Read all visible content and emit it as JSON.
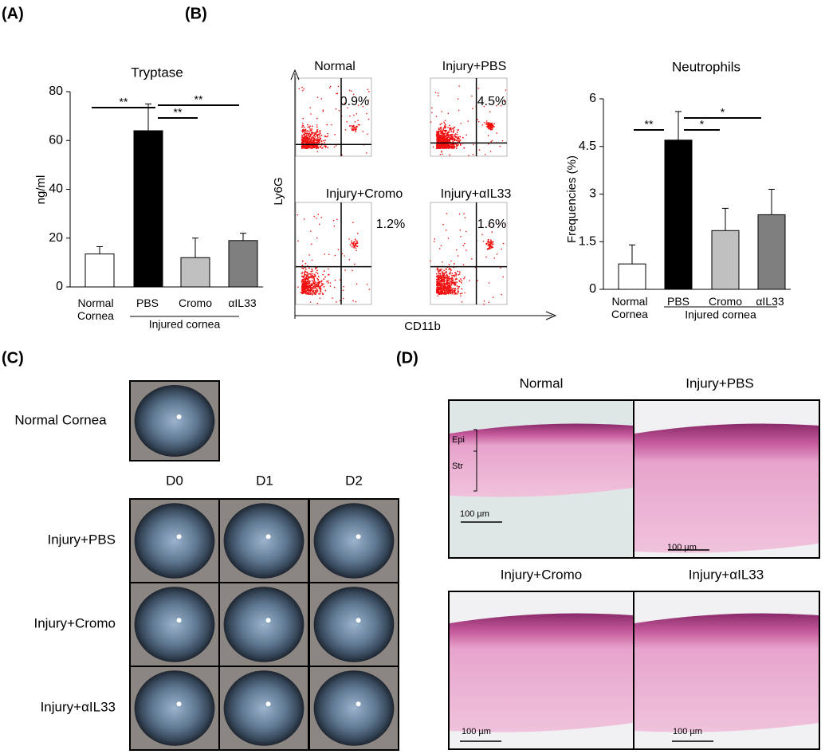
{
  "panel_labels": [
    "(A)",
    "(B)",
    "(C)",
    "(D)"
  ],
  "chart_data": [
    {
      "type": "bar",
      "title": "Tryptase",
      "ylabel": "ng/ml",
      "categories": [
        "Normal Cornea",
        "PBS",
        "Cromo",
        "αIL33"
      ],
      "values": [
        13.5,
        64,
        12,
        19
      ],
      "errors": [
        3,
        11,
        8,
        3
      ],
      "colors": [
        "#ffffff",
        "#000000",
        "#c0c0c0",
        "#7f7f7f"
      ],
      "group_label": "Injured cornea",
      "annotations": [
        "**",
        "**",
        "**"
      ],
      "ylim": [
        0,
        80
      ],
      "yticks": [
        0,
        20,
        40,
        60,
        80
      ]
    },
    {
      "type": "bar",
      "title": "Neutrophils",
      "ylabel": "Frequencies (%)",
      "categories": [
        "Normal Cornea",
        "PBS",
        "Cromo",
        "αIL33"
      ],
      "values": [
        0.8,
        4.7,
        1.85,
        2.35
      ],
      "errors": [
        0.6,
        0.9,
        0.7,
        0.8
      ],
      "colors": [
        "#ffffff",
        "#000000",
        "#c0c0c0",
        "#7f7f7f"
      ],
      "group_label": "Injured cornea",
      "annotations": [
        "**",
        "*",
        "*"
      ],
      "ylim": [
        0,
        6
      ],
      "yticks": [
        0,
        1.5,
        3,
        4.5,
        6
      ]
    }
  ],
  "flow": {
    "xlabel": "CD11b",
    "ylabel": "Ly6G",
    "plots": [
      {
        "title": "Normal",
        "value": "0.9%"
      },
      {
        "title": "Injury+PBS",
        "value": "4.5%"
      },
      {
        "title": "Injury+Cromo",
        "value": "1.2%"
      },
      {
        "title": "Injury+αIL33",
        "value": "1.6%"
      }
    ]
  },
  "panel_c": {
    "normal_label": "Normal Cornea",
    "columns": [
      "D0",
      "D1",
      "D2"
    ],
    "rows": [
      "Injury+PBS",
      "Injury+Cromo",
      "Injury+αIL33"
    ]
  },
  "panel_d": {
    "titles": [
      "Normal",
      "Injury+PBS",
      "Injury+Cromo",
      "Injury+αIL33"
    ],
    "scale_bar": "100 µm",
    "layers": [
      "Epi",
      "Str"
    ]
  }
}
